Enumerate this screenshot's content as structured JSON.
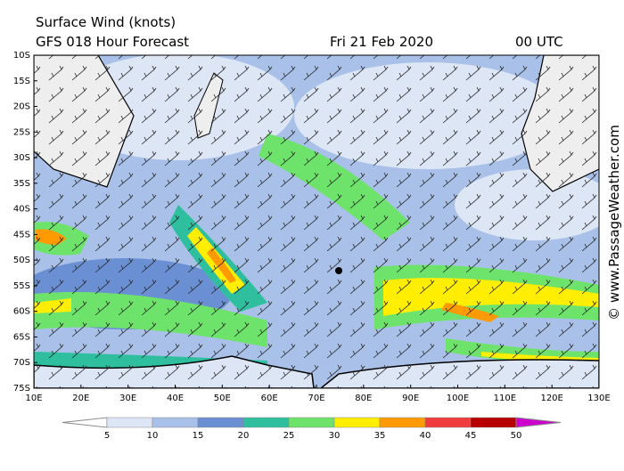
{
  "header": {
    "title": "Surface Wind (knots)",
    "subtitle": "GFS 018 Hour Forecast",
    "date": "Fri 21 Feb 2020",
    "time": "00 UTC"
  },
  "map": {
    "lat_labels": [
      "10S",
      "15S",
      "20S",
      "25S",
      "30S",
      "35S",
      "40S",
      "45S",
      "50S",
      "55S",
      "60S",
      "65S",
      "70S",
      "75S"
    ],
    "lon_labels": [
      "10E",
      "20E",
      "30E",
      "40E",
      "50E",
      "60E",
      "70E",
      "80E",
      "90E",
      "100E",
      "110E",
      "120E",
      "130E"
    ]
  },
  "colorbar": {
    "levels": [
      5,
      10,
      15,
      20,
      25,
      30,
      35,
      40,
      45,
      50
    ],
    "colors": [
      "#ffffff",
      "#dde6f5",
      "#a9c1e8",
      "#6b8fd3",
      "#2fbf9f",
      "#6ee36b",
      "#ffee00",
      "#ff9a00",
      "#f03c3c",
      "#b80000",
      "#cc00cc"
    ]
  },
  "credit": "© www.PassageWeather.com"
}
